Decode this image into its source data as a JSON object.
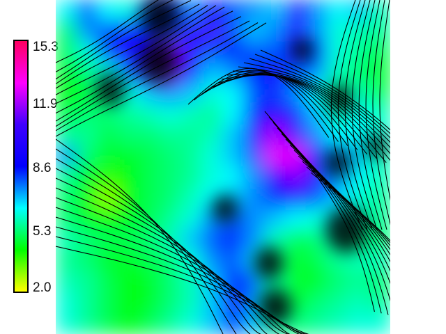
{
  "colorbar": {
    "ticks": [
      "15.3",
      "11.9",
      "8.6",
      "5.3",
      "2.0"
    ],
    "colors": [
      "#ff0060",
      "#ff00ff",
      "#4000ff",
      "#0000ff",
      "#00ffff",
      "#00ff00",
      "#ffff00"
    ]
  },
  "map": {
    "grid_columns": 16,
    "grid_rows": 16,
    "values": [
      [
        8.0,
        9.5,
        8.0,
        7.5,
        9.5,
        10.0,
        9.0,
        10.5,
        9.5,
        9.0,
        8.5,
        11.5,
        9.0,
        8.0,
        8.5,
        7.0
      ],
      [
        6.0,
        9.0,
        9.5,
        10.5,
        10.0,
        9.5,
        11.5,
        12.0,
        9.5,
        8.5,
        9.0,
        11.0,
        9.0,
        7.5,
        7.0,
        6.5
      ],
      [
        5.5,
        7.5,
        10.0,
        11.0,
        10.5,
        12.5,
        11.5,
        9.5,
        10.0,
        9.5,
        9.5,
        10.5,
        9.5,
        7.5,
        6.5,
        5.5
      ],
      [
        5.0,
        6.0,
        7.5,
        9.5,
        11.5,
        12.5,
        10.5,
        8.5,
        9.0,
        10.0,
        10.5,
        9.5,
        9.0,
        7.0,
        6.0,
        5.0
      ],
      [
        4.5,
        5.0,
        6.5,
        7.5,
        8.5,
        9.0,
        8.5,
        7.5,
        8.0,
        9.5,
        10.0,
        9.0,
        8.0,
        6.5,
        7.0,
        5.5
      ],
      [
        5.5,
        6.0,
        6.0,
        6.5,
        7.0,
        7.5,
        7.0,
        6.5,
        8.0,
        10.0,
        11.5,
        10.0,
        8.5,
        7.0,
        8.0,
        7.0
      ],
      [
        6.5,
        6.5,
        5.5,
        6.0,
        6.0,
        6.5,
        6.5,
        7.0,
        8.5,
        10.5,
        13.0,
        12.0,
        9.0,
        8.0,
        8.0,
        7.5
      ],
      [
        9.0,
        6.0,
        5.0,
        5.0,
        5.5,
        6.0,
        6.5,
        7.5,
        8.5,
        9.5,
        13.5,
        13.5,
        10.5,
        9.0,
        8.5,
        7.0
      ],
      [
        6.5,
        5.0,
        4.0,
        4.5,
        5.5,
        6.0,
        6.5,
        7.5,
        8.0,
        9.0,
        11.5,
        12.5,
        10.5,
        9.0,
        8.0,
        7.0
      ],
      [
        6.0,
        4.5,
        3.0,
        4.5,
        5.5,
        6.0,
        7.0,
        8.0,
        8.5,
        9.0,
        10.0,
        10.5,
        9.5,
        8.5,
        7.5,
        6.5
      ],
      [
        6.0,
        5.0,
        4.5,
        5.0,
        5.5,
        6.5,
        7.5,
        9.0,
        9.5,
        9.0,
        8.5,
        8.0,
        7.5,
        8.0,
        7.0,
        6.5
      ],
      [
        7.0,
        6.0,
        5.5,
        5.5,
        6.0,
        7.0,
        8.5,
        9.5,
        10.0,
        9.0,
        7.0,
        5.5,
        6.0,
        7.0,
        6.5,
        6.0
      ],
      [
        6.5,
        6.0,
        5.0,
        5.0,
        5.5,
        6.0,
        7.5,
        9.0,
        9.5,
        8.5,
        6.0,
        5.0,
        5.5,
        6.5,
        7.0,
        7.0
      ],
      [
        7.0,
        6.5,
        5.5,
        4.5,
        5.0,
        6.0,
        7.0,
        8.5,
        10.0,
        9.5,
        6.5,
        5.0,
        5.0,
        6.0,
        6.5,
        6.0
      ],
      [
        7.5,
        6.5,
        5.5,
        4.5,
        5.0,
        6.0,
        7.0,
        8.5,
        10.5,
        9.0,
        6.5,
        5.0,
        6.0,
        6.5,
        7.0,
        6.5
      ],
      [
        7.5,
        6.5,
        5.5,
        4.5,
        5.5,
        6.5,
        7.5,
        8.5,
        10.0,
        8.5,
        7.0,
        6.0,
        6.5,
        7.0,
        7.5,
        7.5
      ]
    ],
    "dark_spots": [
      [
        5.0,
        0.8,
        0.9
      ],
      [
        4.9,
        3.0,
        0.9
      ],
      [
        2.6,
        4.3,
        0.7
      ],
      [
        11.8,
        2.4,
        0.5
      ],
      [
        13.5,
        7.8,
        0.6
      ],
      [
        13.9,
        11.0,
        1.0
      ],
      [
        10.2,
        12.6,
        0.7
      ],
      [
        8.1,
        10.0,
        0.6
      ],
      [
        10.5,
        14.7,
        0.8
      ],
      [
        13.6,
        4.7,
        0.6
      ],
      [
        15.3,
        7.0,
        0.5
      ]
    ]
  }
}
